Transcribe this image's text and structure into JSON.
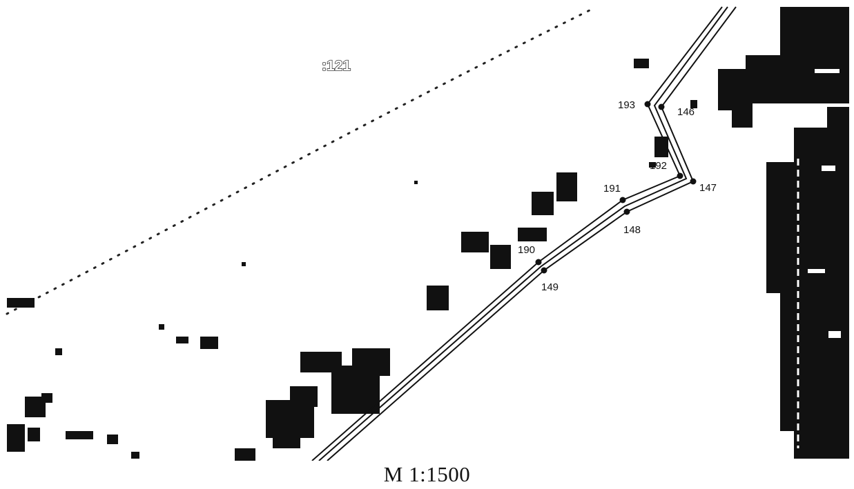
{
  "map": {
    "parcel_label": ":121",
    "scale_text": "M 1:1500",
    "boundary_points": [
      {
        "id": "193",
        "label": "193"
      },
      {
        "id": "146",
        "label": "146"
      },
      {
        "id": "192",
        "label": "192"
      },
      {
        "id": "147",
        "label": "147"
      },
      {
        "id": "191",
        "label": "191"
      },
      {
        "id": "148",
        "label": "148"
      },
      {
        "id": "190",
        "label": "190"
      },
      {
        "id": "149",
        "label": "149"
      }
    ],
    "colors": {
      "ink": "#111111",
      "background": "#ffffff"
    }
  }
}
